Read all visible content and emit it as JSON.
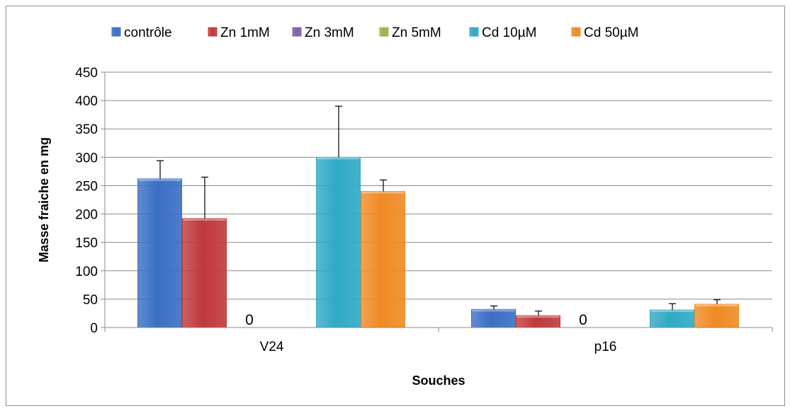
{
  "chart_data": {
    "type": "bar",
    "title": "",
    "xlabel": "Souches",
    "ylabel": "Masse fraiche en mg",
    "categories": [
      "V24",
      "p16"
    ],
    "ylim": [
      0,
      450
    ],
    "yticks": [
      0,
      50,
      100,
      150,
      200,
      250,
      300,
      350,
      400,
      450
    ],
    "grid": true,
    "legend_position": "top",
    "series": [
      {
        "name": "contrôle",
        "color": "#3a6fc4",
        "values": [
          262,
          32
        ],
        "errors": [
          32,
          6
        ]
      },
      {
        "name": "Zn 1mM",
        "color": "#c0393b",
        "values": [
          192,
          21
        ],
        "errors": [
          73,
          8
        ]
      },
      {
        "name": "Zn 3mM",
        "color": "#7d5fa6",
        "values": [
          0,
          0
        ],
        "errors": [
          null,
          null
        ]
      },
      {
        "name": "Zn 5mM",
        "color": "#93b846",
        "values": [
          0,
          0
        ],
        "errors": [
          null,
          null
        ]
      },
      {
        "name": "Cd 10µM",
        "color": "#2fa9c5",
        "values": [
          300,
          31
        ],
        "errors": [
          90,
          11
        ]
      },
      {
        "name": "Cd 50µM",
        "color": "#f08a24",
        "values": [
          240,
          41
        ],
        "errors": [
          20,
          8
        ]
      }
    ],
    "annotations": [
      {
        "category": "V24",
        "series": "Zn 3mM",
        "text": "0"
      },
      {
        "category": "p16",
        "series": "Zn 3mM",
        "text": "0"
      }
    ]
  }
}
